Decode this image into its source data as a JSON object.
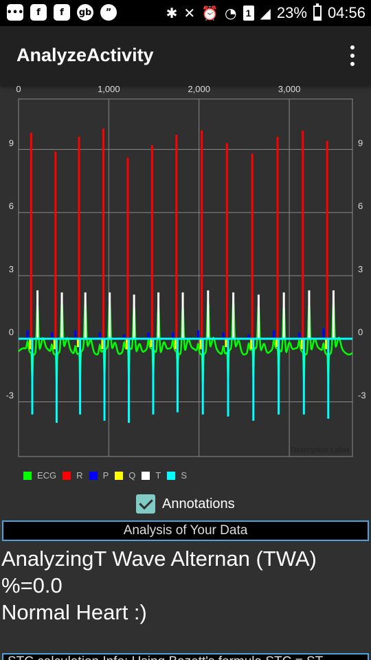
{
  "status_bar": {
    "left_icons": [
      "messages-icon",
      "facebook-icon",
      "facebook-icon",
      "gb-icon",
      "chat-icon"
    ],
    "left_glyphs": [
      "•••",
      "f",
      "f",
      "gb",
      "”"
    ],
    "sim": "1",
    "battery_text": "23%",
    "battery_level": 0.23,
    "time": "04:56"
  },
  "app_bar": {
    "title": "AnalyzeActivity"
  },
  "chart_data": {
    "type": "line",
    "description_label": "Description Label",
    "x_ticks": [
      "0",
      "1,000",
      "2,000",
      "3,000"
    ],
    "x_tick_values": [
      0,
      1000,
      2000,
      3000
    ],
    "xlim": [
      0,
      3700
    ],
    "y_ticks": [
      "9",
      "6",
      "3",
      "0",
      "-3"
    ],
    "y_tick_values": [
      9,
      6,
      3,
      0,
      -3
    ],
    "ylim": [
      -5.6,
      11.4
    ],
    "grid": true,
    "legend_position": "bottom-left",
    "beats_x": [
      140,
      410,
      670,
      940,
      1210,
      1480,
      1750,
      2030,
      2310,
      2590,
      2870,
      3150,
      3420
    ],
    "series": [
      {
        "name": "ECG",
        "color": "#00ff00",
        "points": "continuous"
      },
      {
        "name": "R",
        "color": "#ff0000",
        "values": [
          9.8,
          8.9,
          9.6,
          10.0,
          8.6,
          9.2,
          9.7,
          9.9,
          9.3,
          8.8,
          9.6,
          9.9,
          9.4
        ]
      },
      {
        "name": "P",
        "color": "#0000ff",
        "values": [
          0.4,
          0.3,
          0.4,
          0.3,
          0.2,
          0.3,
          0.3,
          0.4,
          0.3,
          0.2,
          0.4,
          0.3,
          0.5
        ]
      },
      {
        "name": "Q",
        "color": "#ffff00",
        "values": [
          -0.5,
          -0.5,
          -0.4,
          -0.5,
          -0.5,
          -0.4,
          -0.5,
          -0.5,
          -0.4,
          -0.5,
          -0.4,
          -0.5,
          -0.5
        ]
      },
      {
        "name": "T",
        "color": "#ffffff",
        "values": [
          2.3,
          2.2,
          2.2,
          2.2,
          2.1,
          2.2,
          2.2,
          2.3,
          2.2,
          2.1,
          2.2,
          2.3,
          2.3
        ]
      },
      {
        "name": "S",
        "color": "#00ffff",
        "values": [
          -3.6,
          -4.0,
          -3.6,
          -3.9,
          -4.0,
          -3.6,
          -3.5,
          -3.6,
          -3.7,
          -3.9,
          -3.6,
          -3.6,
          -3.8
        ]
      }
    ]
  },
  "legend": [
    {
      "label": "ECG",
      "color": "#00ff00"
    },
    {
      "label": "R",
      "color": "#ff0000"
    },
    {
      "label": "P",
      "color": "#0000ff"
    },
    {
      "label": "Q",
      "color": "#ffff00"
    },
    {
      "label": "T",
      "color": "#ffffff"
    },
    {
      "label": "S",
      "color": "#00ffff"
    }
  ],
  "annotations_checkbox": {
    "label": "Annotations",
    "checked": true
  },
  "analysis": {
    "header": "Analysis of Your Data",
    "line1": "AnalyzingT Wave Alternan (TWA)",
    "line2": "%=0.0",
    "line3": "Normal Heart :)",
    "bottom_box_text": "STC calculation Info: Using Bazett's formula STC = ST"
  }
}
